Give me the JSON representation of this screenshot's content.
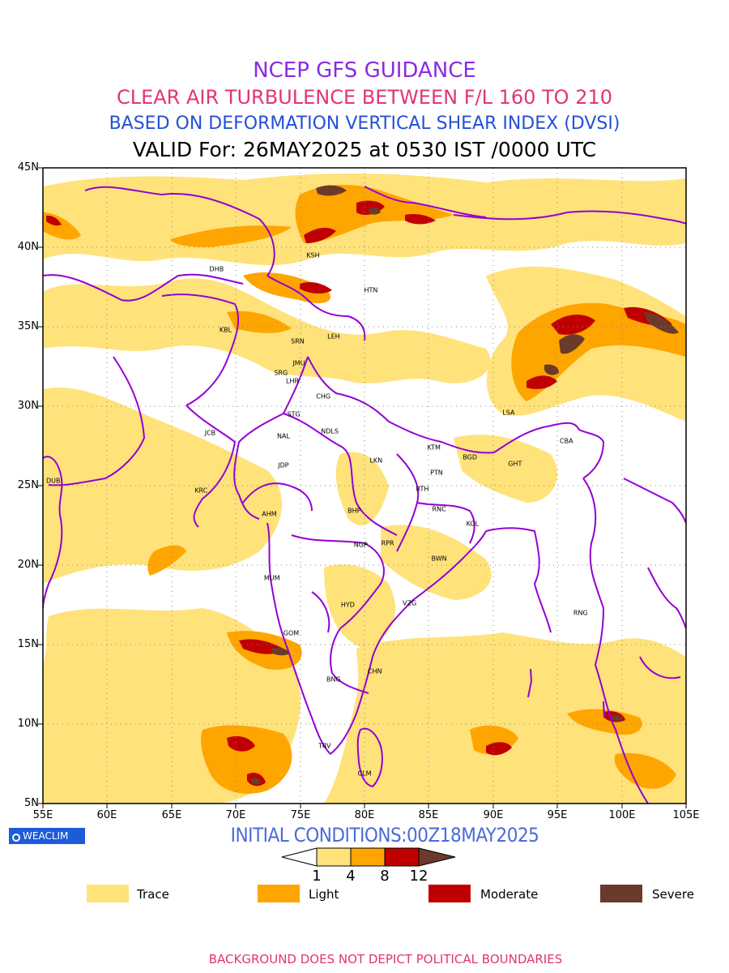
{
  "title": {
    "line1": {
      "text": "NCEP GFS GUIDANCE",
      "color": "#8a2be2"
    },
    "line2": {
      "text": "CLEAR AIR TURBULENCE BETWEEN F/L 160 TO 210",
      "color": "#e0357a"
    },
    "line3": {
      "text": "BASED ON DEFORMATION VERTICAL SHEAR INDEX (DVSI)",
      "color": "#2450d8"
    },
    "line4": {
      "text": "VALID For: 26MAY2025 at 0530 IST /0000 UTC"
    }
  },
  "map": {
    "lat_labels": [
      "45N",
      "40N",
      "35N",
      "30N",
      "25N",
      "20N",
      "15N",
      "10N",
      "5N"
    ],
    "lon_labels": [
      "55E",
      "60E",
      "65E",
      "70E",
      "75E",
      "80E",
      "85E",
      "90E",
      "95E",
      "100E",
      "105E"
    ],
    "boundary_color": "#9400d3",
    "stations": [
      {
        "code": "KSH",
        "lon": 76.0,
        "lat": 39.5
      },
      {
        "code": "DHB",
        "lon": 68.5,
        "lat": 38.6
      },
      {
        "code": "HTN",
        "lon": 80.5,
        "lat": 37.3
      },
      {
        "code": "KBL",
        "lon": 69.2,
        "lat": 34.8
      },
      {
        "code": "SRN",
        "lon": 74.8,
        "lat": 34.1
      },
      {
        "code": "LEH",
        "lon": 77.6,
        "lat": 34.4
      },
      {
        "code": "JMU",
        "lon": 74.9,
        "lat": 32.7
      },
      {
        "code": "SRG",
        "lon": 73.5,
        "lat": 32.1
      },
      {
        "code": "LHR",
        "lon": 74.4,
        "lat": 31.6
      },
      {
        "code": "CHG",
        "lon": 76.8,
        "lat": 30.6
      },
      {
        "code": "STG",
        "lon": 74.5,
        "lat": 29.5
      },
      {
        "code": "JCB",
        "lon": 68.0,
        "lat": 28.3
      },
      {
        "code": "NAL",
        "lon": 73.7,
        "lat": 28.1
      },
      {
        "code": "NDLS",
        "lon": 77.3,
        "lat": 28.4
      },
      {
        "code": "LSA",
        "lon": 91.2,
        "lat": 29.6
      },
      {
        "code": "KTM",
        "lon": 85.4,
        "lat": 27.4
      },
      {
        "code": "BGD",
        "lon": 88.2,
        "lat": 26.8
      },
      {
        "code": "CBA",
        "lon": 95.7,
        "lat": 27.8
      },
      {
        "code": "LKN",
        "lon": 80.9,
        "lat": 26.6
      },
      {
        "code": "GHT",
        "lon": 91.7,
        "lat": 26.4
      },
      {
        "code": "JDP",
        "lon": 73.7,
        "lat": 26.3
      },
      {
        "code": "PTN",
        "lon": 85.6,
        "lat": 25.8
      },
      {
        "code": "DUB",
        "lon": 55.8,
        "lat": 25.3
      },
      {
        "code": "KRC",
        "lon": 67.3,
        "lat": 24.7
      },
      {
        "code": "RTH",
        "lon": 84.5,
        "lat": 24.8
      },
      {
        "code": "BHP",
        "lon": 79.2,
        "lat": 23.4
      },
      {
        "code": "AHM",
        "lon": 72.6,
        "lat": 23.2
      },
      {
        "code": "RNC",
        "lon": 85.8,
        "lat": 23.5
      },
      {
        "code": "KOL",
        "lon": 88.4,
        "lat": 22.6
      },
      {
        "code": "NGP",
        "lon": 79.7,
        "lat": 21.3
      },
      {
        "code": "RPR",
        "lon": 81.8,
        "lat": 21.4
      },
      {
        "code": "BWN",
        "lon": 85.8,
        "lat": 20.4
      },
      {
        "code": "MUM",
        "lon": 72.8,
        "lat": 19.2
      },
      {
        "code": "HYD",
        "lon": 78.7,
        "lat": 17.5
      },
      {
        "code": "VZG",
        "lon": 83.5,
        "lat": 17.6
      },
      {
        "code": "RNG",
        "lon": 96.8,
        "lat": 17.0
      },
      {
        "code": "GOM",
        "lon": 74.3,
        "lat": 15.7
      },
      {
        "code": "CHN",
        "lon": 80.8,
        "lat": 13.3
      },
      {
        "code": "BNG",
        "lon": 77.6,
        "lat": 12.8
      },
      {
        "code": "TRV",
        "lon": 76.9,
        "lat": 8.6
      },
      {
        "code": "CLM",
        "lon": 80.0,
        "lat": 6.9
      }
    ]
  },
  "logo": {
    "text": "WEACLIM"
  },
  "initial_conditions": "INITIAL CONDITIONS:00Z18MAY2025",
  "colorbar": {
    "ticks": [
      "1",
      "4",
      "8",
      "12"
    ],
    "colors": [
      "#ffe27a",
      "#ffa500",
      "#c00000",
      "#6b3a2a"
    ]
  },
  "legend": [
    {
      "label": "Trace",
      "color": "#ffe27a"
    },
    {
      "label": "Light",
      "color": "#ffa500"
    },
    {
      "label": "Moderate",
      "color": "#c00000"
    },
    {
      "label": "Severe",
      "color": "#6b3a2a"
    }
  ],
  "footer": {
    "text": "BACKGROUND DOES NOT DEPICT POLITICAL BOUNDARIES",
    "color": "#e0357a"
  }
}
